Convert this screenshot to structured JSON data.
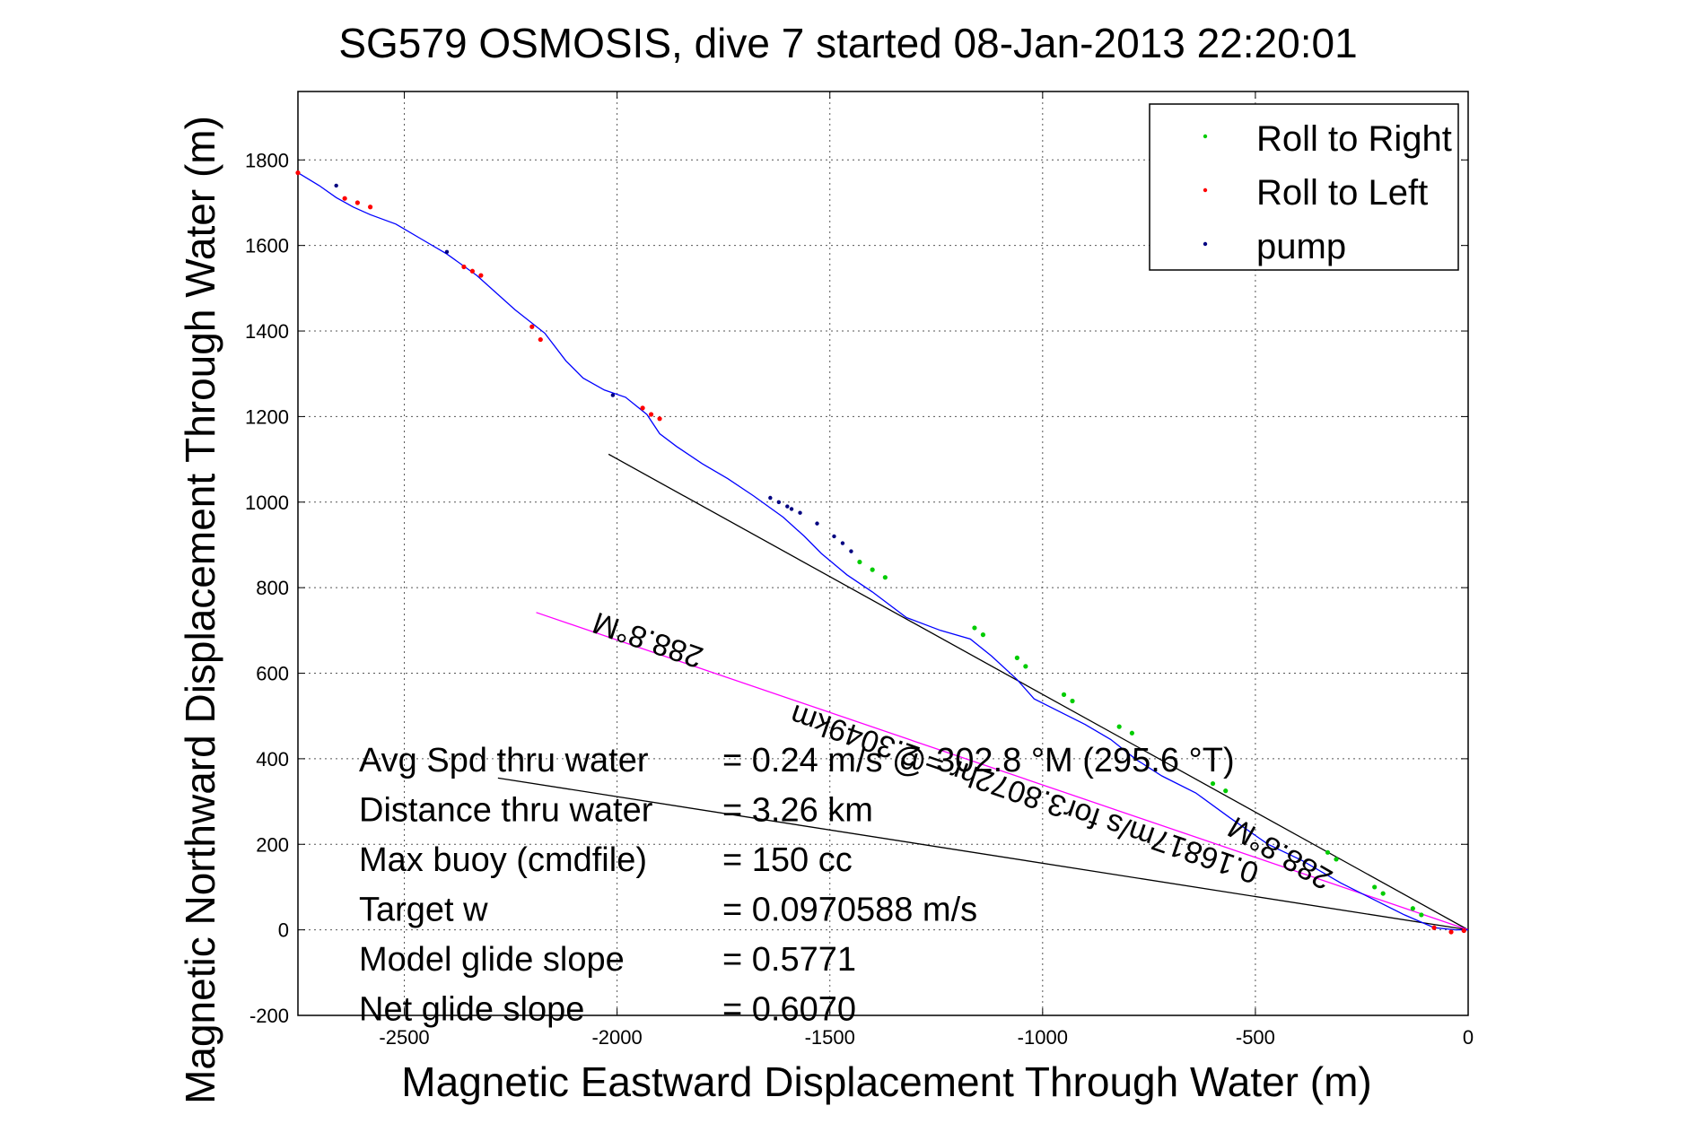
{
  "chart_data": {
    "type": "scatter",
    "title": "SG579 OSMOSIS, dive 7 started 08-Jan-2013 22:20:01",
    "xlabel": "Magnetic Eastward Displacement Through Water (m)",
    "ylabel": "Magnetic Northward Displacement Through Water (m)",
    "xlim": [
      -2750,
      0
    ],
    "ylim": [
      -200,
      1960
    ],
    "x_ticks": [
      -2500,
      -2000,
      -1500,
      -1000,
      -500,
      0
    ],
    "y_ticks": [
      -200,
      0,
      200,
      400,
      600,
      800,
      1000,
      1200,
      1400,
      1600,
      1800
    ],
    "grid": true,
    "legend_position": "top-right",
    "legend": [
      {
        "label": "Roll to Right",
        "color": "#00cc00"
      },
      {
        "label": "Roll to Left",
        "color": "#ff0000"
      },
      {
        "label": "pump",
        "color": "#000080"
      }
    ],
    "track": {
      "name": "track",
      "color": "#0000ff",
      "x": [
        -2750,
        -2700,
        -2660,
        -2620,
        -2580,
        -2520,
        -2460,
        -2400,
        -2330,
        -2240,
        -2170,
        -2120,
        -2080,
        -2030,
        -1980,
        -1930,
        -1900,
        -1860,
        -1800,
        -1740,
        -1680,
        -1610,
        -1560,
        -1520,
        -1460,
        -1400,
        -1320,
        -1240,
        -1170,
        -1120,
        -1060,
        -1020,
        -960,
        -900,
        -840,
        -780,
        -720,
        -640,
        -560,
        -470,
        -390,
        -300,
        -220,
        -150,
        -80,
        -30,
        0
      ],
      "y": [
        1770,
        1740,
        1712,
        1690,
        1672,
        1650,
        1615,
        1580,
        1530,
        1450,
        1395,
        1330,
        1290,
        1262,
        1245,
        1205,
        1160,
        1130,
        1090,
        1055,
        1015,
        965,
        920,
        880,
        830,
        790,
        730,
        700,
        680,
        640,
        585,
        540,
        510,
        480,
        445,
        398,
        360,
        320,
        262,
        200,
        162,
        110,
        70,
        35,
        5,
        0,
        0
      ]
    },
    "roll_right": {
      "x": [
        -1430,
        -1400,
        -1370,
        -1160,
        -1140,
        -1060,
        -1040,
        -950,
        -930,
        -820,
        -790,
        -600,
        -570,
        -330,
        -310,
        -220,
        -200,
        -130,
        -110
      ],
      "y": [
        860,
        842,
        824,
        706,
        690,
        636,
        616,
        550,
        535,
        475,
        460,
        342,
        325,
        181,
        165,
        100,
        85,
        50,
        35
      ]
    },
    "roll_left": {
      "x": [
        -2750,
        -2640,
        -2610,
        -2580,
        -2360,
        -2340,
        -2320,
        -2200,
        -2180,
        -1940,
        -1920,
        -1900,
        -80,
        -40,
        -10
      ],
      "y": [
        1770,
        1710,
        1700,
        1690,
        1550,
        1540,
        1530,
        1410,
        1380,
        1220,
        1205,
        1195,
        5,
        -5,
        -2
      ]
    },
    "pump": {
      "x": [
        -2660,
        -2400,
        -2010,
        -1640,
        -1620,
        -1600,
        -1590,
        -1570,
        -1530,
        -1490,
        -1470,
        -1450
      ],
      "y": [
        1740,
        1585,
        1250,
        1010,
        1000,
        990,
        984,
        975,
        950,
        920,
        904,
        885
      ]
    },
    "reference_lines": [
      {
        "color": "#000000",
        "x": [
          -2020,
          0
        ],
        "y": [
          1112,
          0
        ]
      },
      {
        "color": "#000000",
        "x": [
          -2280,
          0
        ],
        "y": [
          355,
          0
        ]
      },
      {
        "color": "#ff00ff",
        "x": [
          -2190,
          0
        ],
        "y": [
          742,
          0
        ]
      }
    ],
    "annotations": [
      {
        "text": "288.8°M",
        "x": -1920,
        "y": 700,
        "angle": 19
      },
      {
        "text": "288.8°M",
        "x": -430,
        "y": 200,
        "angle": 30
      },
      {
        "text": "0.16817m/s for3.8072hr = 2.3049km",
        "x": -1035,
        "y": 340,
        "angle": 19
      }
    ],
    "stats": [
      {
        "label": "Avg Spd thru water",
        "value": "=  0.24 m/s @ 302.8 °M (295.6 °T)"
      },
      {
        "label": "Distance thru water",
        "value": "=  3.26 km"
      },
      {
        "label": "Max buoy (cmdfile)",
        "value": "= 150 cc"
      },
      {
        "label": "Target w",
        "value": "= 0.0970588 m/s"
      },
      {
        "label": "Model glide slope",
        "value": "= 0.5771"
      },
      {
        "label": "Net glide slope",
        "value": "= 0.6070"
      }
    ]
  }
}
